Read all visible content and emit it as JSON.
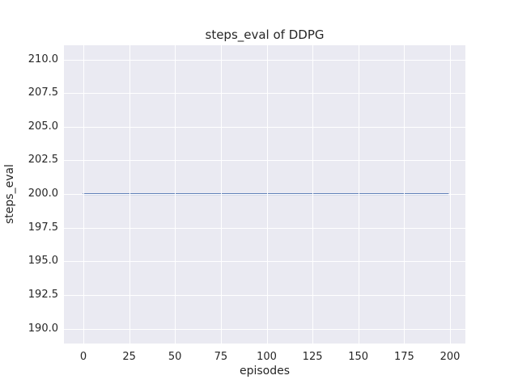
{
  "chart_data": {
    "type": "line",
    "title": "steps_eval of DDPG",
    "xlabel": "episodes",
    "ylabel": "steps_eval",
    "x_ticks": [
      0,
      25,
      50,
      75,
      100,
      125,
      150,
      175,
      200
    ],
    "x_tick_labels": [
      "0",
      "25",
      "50",
      "75",
      "100",
      "125",
      "150",
      "175",
      "200"
    ],
    "y_ticks": [
      190.0,
      192.5,
      195.0,
      197.5,
      200.0,
      202.5,
      205.0,
      207.5,
      210.0
    ],
    "y_tick_labels": [
      "190.0",
      "192.5",
      "195.0",
      "197.5",
      "200.0",
      "202.5",
      "205.0",
      "207.5",
      "210.0"
    ],
    "xlim": [
      -10.6,
      208.4
    ],
    "ylim": [
      188.9,
      211.05
    ],
    "grid": true,
    "legend_position": "none",
    "plot_background": "#eaeaf2",
    "gridline_color": "#ffffff",
    "text_color": "#262626",
    "series": [
      {
        "name": "steps_eval",
        "color": "#4c72b0",
        "line_width": 2,
        "x": [
          0,
          199
        ],
        "y": [
          200,
          200
        ],
        "description": "constant value 200 across episodes 0 to 199"
      }
    ]
  }
}
